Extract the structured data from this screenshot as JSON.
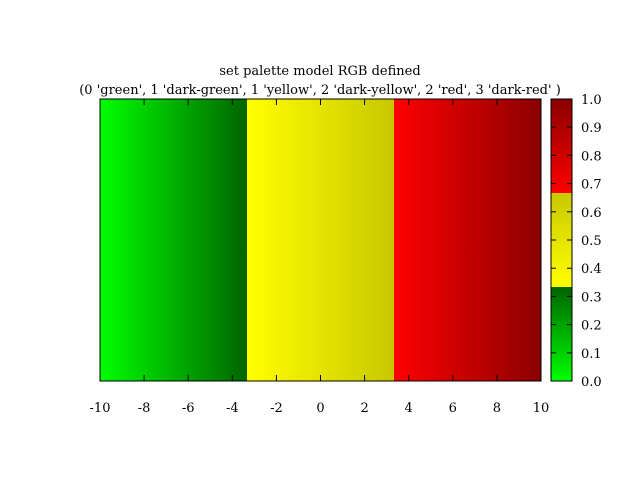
{
  "chart_data": {
    "type": "heatmap",
    "title": "set palette model RGB defined",
    "subtitle": "(0 'green', 1 'dark-green', 1 'yellow', 2 'dark-yellow', 2 'red', 3 'dark-red' )",
    "xlabel": "",
    "ylabel": "",
    "xlim": [
      -10,
      10
    ],
    "x_ticks": [
      "-10",
      "-8",
      "-6",
      "-4",
      "-2",
      "0",
      "2",
      "4",
      "6",
      "8",
      "10"
    ],
    "x_tick_values": [
      -10,
      -8,
      -6,
      -4,
      -2,
      0,
      2,
      4,
      6,
      8,
      10
    ],
    "colorbar": {
      "range": [
        0,
        1
      ],
      "ticks": [
        "0.0",
        "0.1",
        "0.2",
        "0.3",
        "0.4",
        "0.5",
        "0.6",
        "0.7",
        "0.8",
        "0.9",
        "1.0"
      ],
      "tick_values": [
        0,
        0.1,
        0.2,
        0.3,
        0.4,
        0.5,
        0.6,
        0.7,
        0.8,
        0.9,
        1.0
      ]
    },
    "palette": [
      {
        "position": 0,
        "color": "#00ff00"
      },
      {
        "position": 1,
        "color": "#006400"
      },
      {
        "position": 1,
        "color": "#ffff00"
      },
      {
        "position": 2,
        "color": "#c8c800"
      },
      {
        "position": 2,
        "color": "#ff0000"
      },
      {
        "position": 3,
        "color": "#8b0000"
      }
    ],
    "grid": false
  }
}
